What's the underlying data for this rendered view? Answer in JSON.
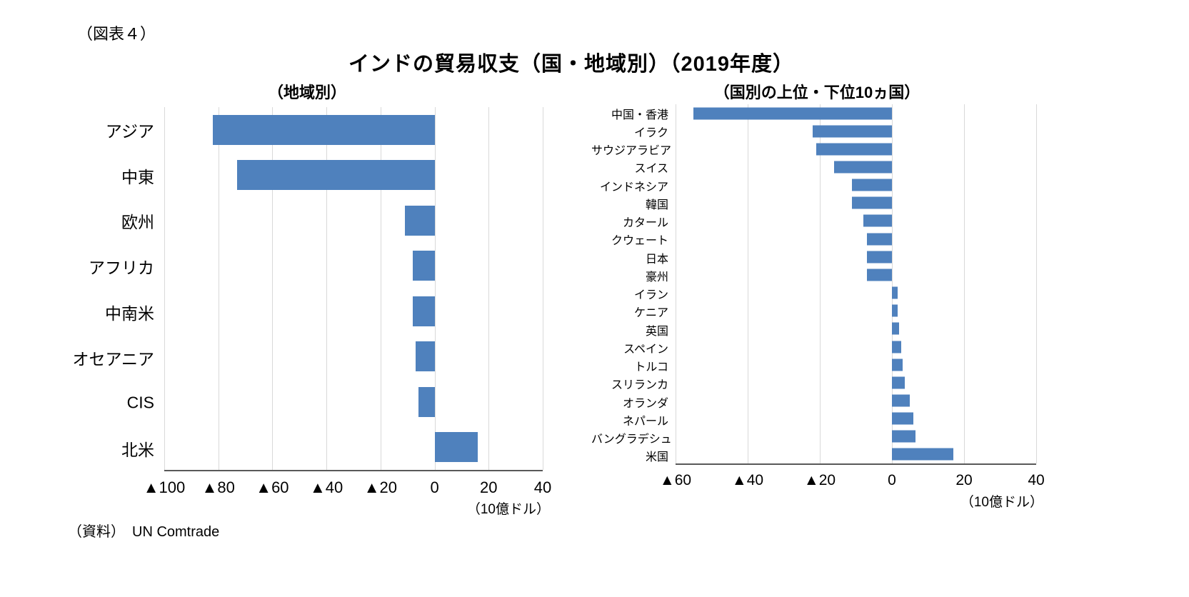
{
  "figure_label": "（図表４）",
  "title": "インドの貿易収支（国・地域別）（2019年度）",
  "source": "（資料）　UN Comtrade",
  "chart_data": [
    {
      "type": "bar",
      "orientation": "horizontal",
      "title": "（地域別）",
      "categories": [
        "アジア",
        "中東",
        "欧州",
        "アフリカ",
        "中南米",
        "オセアニア",
        "CIS",
        "北米"
      ],
      "values": [
        -82,
        -73,
        -11,
        -8,
        -8,
        -7,
        -6,
        16
      ],
      "xlim": [
        -100,
        40
      ],
      "xticks": [
        -100,
        -80,
        -60,
        -40,
        -20,
        0,
        20,
        40
      ],
      "xtick_labels": [
        "▲100",
        "▲80",
        "▲60",
        "▲40",
        "▲20",
        "0",
        "20",
        "40"
      ],
      "unit_label": "（10億ドル）",
      "bar_color": "#4F81BD",
      "grid": true,
      "legend": "none"
    },
    {
      "type": "bar",
      "orientation": "horizontal",
      "title": "（国別の上位・下位10ヵ国）",
      "categories": [
        "中国・香港",
        "イラク",
        "サウジアラビア",
        "スイス",
        "インドネシア",
        "韓国",
        "カタール",
        "クウェート",
        "日本",
        "豪州",
        "イラン",
        "ケニア",
        "英国",
        "スペイン",
        "トルコ",
        "スリランカ",
        "オランダ",
        "ネパール",
        "バングラデシュ",
        "米国"
      ],
      "values": [
        -55,
        -22,
        -21,
        -16,
        -11,
        -11,
        -8,
        -7,
        -7,
        -7,
        1.5,
        1.5,
        2,
        2.5,
        3,
        3.5,
        5,
        6,
        6.5,
        17
      ],
      "xlim": [
        -60,
        40
      ],
      "xticks": [
        -60,
        -40,
        -20,
        0,
        20,
        40
      ],
      "xtick_labels": [
        "▲60",
        "▲40",
        "▲20",
        "0",
        "20",
        "40"
      ],
      "unit_label": "（10億ドル）",
      "bar_color": "#4F81BD",
      "grid": true,
      "legend": "none"
    }
  ]
}
